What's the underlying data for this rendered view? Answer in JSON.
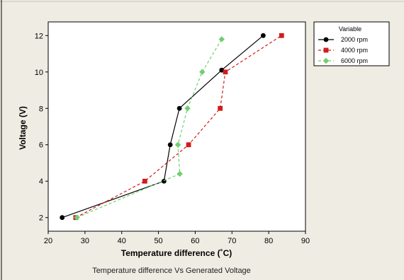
{
  "chart_data": {
    "type": "line",
    "xlabel": "Temperature difference (˚C)",
    "ylabel": "Voltage (V)",
    "caption": "Temperature difference Vs Generated Voltage",
    "xlim": [
      20,
      90
    ],
    "ylim": [
      1.25,
      12.75
    ],
    "xticks": [
      20,
      30,
      40,
      50,
      60,
      70,
      80,
      90
    ],
    "yticks": [
      2,
      4,
      6,
      8,
      10,
      12
    ],
    "grid": false,
    "legend": {
      "title": "Variable",
      "placement": "top-right outside"
    },
    "series": [
      {
        "name": "2000 rpm",
        "color": "#000000",
        "marker": "circle",
        "line": "solid",
        "points": [
          [
            23.8,
            2
          ],
          [
            51.5,
            4
          ],
          [
            53.2,
            6
          ],
          [
            55.7,
            8
          ],
          [
            67.2,
            10.1
          ],
          [
            78.5,
            12
          ]
        ]
      },
      {
        "name": "4000 rpm",
        "color": "#d01c1c",
        "marker": "square",
        "line": "dashed",
        "points": [
          [
            27.5,
            2
          ],
          [
            46.3,
            4
          ],
          [
            58.2,
            6
          ],
          [
            66.8,
            8
          ],
          [
            68.2,
            10
          ],
          [
            83.5,
            12
          ]
        ]
      },
      {
        "name": "6000 rpm",
        "color": "#6fcf6f",
        "marker": "diamond",
        "line": "dashed",
        "points": [
          [
            27.8,
            2
          ],
          [
            55.8,
            4.4
          ],
          [
            55.3,
            6
          ],
          [
            57.9,
            8
          ],
          [
            61.9,
            10
          ],
          [
            67.2,
            11.8
          ]
        ]
      }
    ]
  }
}
